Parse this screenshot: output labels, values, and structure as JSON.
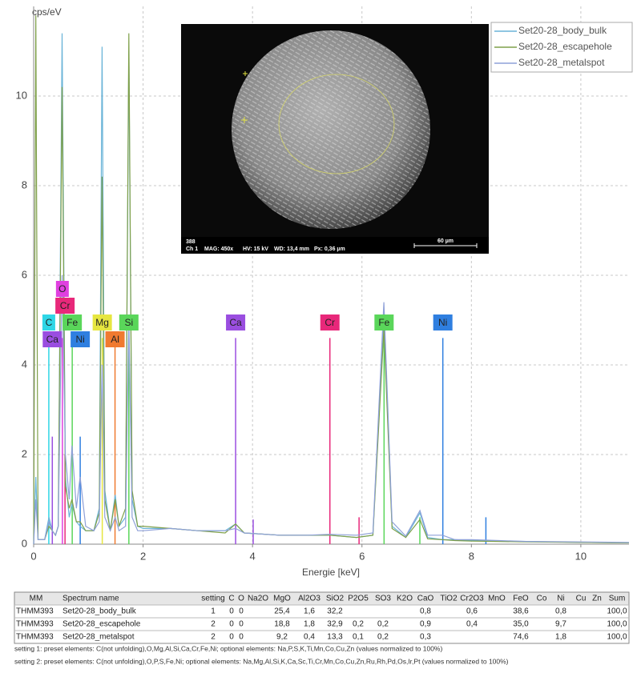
{
  "chart_data": {
    "type": "line",
    "y_label": "cps/eV",
    "x_label": "Energie [keV]",
    "xlim": [
      0,
      10.88
    ],
    "ylim": [
      0,
      12
    ],
    "xticks": [
      0,
      2,
      4,
      6,
      8,
      10
    ],
    "yticks": [
      0,
      2,
      4,
      6,
      8,
      10
    ],
    "grid": true,
    "legend": "top-right",
    "x": [
      0,
      0.04,
      0.08,
      0.2,
      0.28,
      0.34,
      0.4,
      0.45,
      0.52,
      0.58,
      0.65,
      0.7,
      0.78,
      0.85,
      0.95,
      1.1,
      1.2,
      1.25,
      1.3,
      1.4,
      1.49,
      1.56,
      1.68,
      1.74,
      1.8,
      1.9,
      2.0,
      2.5,
      3.0,
      3.5,
      3.69,
      3.85,
      4.5,
      5.0,
      5.41,
      5.9,
      6.2,
      6.4,
      6.55,
      6.8,
      7.06,
      7.2,
      7.47,
      7.7,
      8.0,
      8.5,
      9.0,
      10.0,
      10.88
    ],
    "series": [
      {
        "name": "Set20-28_body_bulk",
        "color": "#6ab4d8",
        "values": [
          0,
          1.5,
          0.1,
          0.1,
          0.6,
          0.3,
          0.2,
          0.4,
          11.4,
          1.5,
          0.6,
          0.9,
          0.5,
          0.4,
          0.3,
          0.3,
          0.8,
          11.1,
          1.2,
          0.3,
          1.1,
          0.4,
          0.6,
          11.0,
          1.0,
          0.4,
          0.35,
          0.35,
          0.3,
          0.3,
          0.45,
          0.25,
          0.2,
          0.2,
          0.2,
          0.15,
          0.2,
          5.2,
          0.4,
          0.15,
          0.7,
          0.15,
          0.1,
          0.1,
          0.08,
          0.07,
          0.06,
          0.04,
          0.03
        ]
      },
      {
        "name": "Set20-28_escapehole",
        "color": "#7fa04a",
        "values": [
          0,
          11.8,
          0.1,
          0.1,
          0.4,
          0.3,
          0.2,
          0.4,
          10.2,
          1.3,
          0.8,
          1.0,
          0.5,
          0.5,
          0.3,
          0.3,
          0.7,
          8.2,
          1.0,
          0.3,
          1.0,
          0.4,
          0.8,
          11.4,
          1.2,
          0.4,
          0.4,
          0.35,
          0.3,
          0.25,
          0.45,
          0.25,
          0.2,
          0.2,
          0.2,
          0.15,
          0.2,
          4.8,
          0.35,
          0.15,
          0.55,
          0.12,
          0.1,
          0.08,
          0.07,
          0.06,
          0.05,
          0.04,
          0.03
        ]
      },
      {
        "name": "Set20-28_metalspot",
        "color": "#8ea0d8",
        "values": [
          0,
          1.0,
          0.1,
          0.1,
          0.5,
          0.3,
          0.2,
          0.4,
          6.0,
          2.0,
          1.0,
          2.2,
          0.8,
          1.5,
          0.4,
          0.3,
          0.5,
          4.0,
          0.6,
          0.3,
          0.6,
          0.3,
          0.4,
          5.0,
          0.6,
          0.3,
          0.3,
          0.35,
          0.3,
          0.3,
          0.35,
          0.25,
          0.2,
          0.2,
          0.22,
          0.2,
          0.25,
          5.4,
          0.5,
          0.18,
          0.75,
          0.2,
          0.2,
          0.1,
          0.1,
          0.08,
          0.06,
          0.05,
          0.04
        ]
      }
    ],
    "element_lines": [
      {
        "x": 0.277,
        "height": 4.6,
        "color": "#2fd6e6"
      },
      {
        "x": 0.341,
        "height": 2.4,
        "color": "#9a4ee0"
      },
      {
        "x": 0.525,
        "height": 4.6,
        "color": "#e040e0"
      },
      {
        "x": 0.573,
        "height": 2.0,
        "color": "#e8287a"
      },
      {
        "x": 0.705,
        "height": 4.6,
        "color": "#5ad65a"
      },
      {
        "x": 0.851,
        "height": 2.4,
        "color": "#2f7fe0"
      },
      {
        "x": 1.254,
        "height": 4.6,
        "color": "#e6e640"
      },
      {
        "x": 1.487,
        "height": 4.6,
        "color": "#f07a30"
      },
      {
        "x": 1.74,
        "height": 4.6,
        "color": "#5ad65a"
      },
      {
        "x": 3.691,
        "height": 4.6,
        "color": "#9a4ee0"
      },
      {
        "x": 4.012,
        "height": 0.55,
        "color": "#9a4ee0"
      },
      {
        "x": 5.414,
        "height": 4.6,
        "color": "#e8287a"
      },
      {
        "x": 5.947,
        "height": 0.6,
        "color": "#e8287a"
      },
      {
        "x": 6.404,
        "height": 4.6,
        "color": "#5ad65a"
      },
      {
        "x": 7.058,
        "height": 0.6,
        "color": "#5ad65a"
      },
      {
        "x": 7.478,
        "height": 4.6,
        "color": "#2f7fe0"
      },
      {
        "x": 8.265,
        "height": 0.6,
        "color": "#2f7fe0"
      }
    ],
    "element_labels": [
      {
        "label": "C",
        "x": 0.277,
        "color": "#2fd6e6"
      },
      {
        "label": "Ca",
        "x": 0.341,
        "color": "#9a4ee0"
      },
      {
        "label": "Cr",
        "x": 0.573,
        "color": "#e8287a"
      },
      {
        "label": "O",
        "x": 0.525,
        "color": "#e040e0"
      },
      {
        "label": "Fe",
        "x": 0.705,
        "color": "#5ad65a"
      },
      {
        "label": "Ni",
        "x": 0.851,
        "color": "#2f7fe0"
      },
      {
        "label": "Mg",
        "x": 1.254,
        "color": "#e6e640"
      },
      {
        "label": "Al",
        "x": 1.487,
        "color": "#f07a30"
      },
      {
        "label": "Si",
        "x": 1.74,
        "color": "#5ad65a"
      },
      {
        "label": "Ca",
        "x": 3.691,
        "color": "#9a4ee0"
      },
      {
        "label": "Cr",
        "x": 5.414,
        "color": "#e8287a"
      },
      {
        "label": "Fe",
        "x": 6.404,
        "color": "#5ad65a"
      },
      {
        "label": "Ni",
        "x": 7.478,
        "color": "#2f7fe0"
      }
    ]
  },
  "inset_image": {
    "number": "388",
    "channel": "Ch 1",
    "mag": "MAG: 450x",
    "hv": "HV: 15 kV",
    "wd": "WD: 13,4 mm",
    "px": "Px: 0,36 µm",
    "scale_bar": "60 µm"
  },
  "table": {
    "header": [
      "MM",
      "Spectrum name",
      "setting",
      "C",
      "O",
      "Na2O",
      "MgO",
      "Al2O3",
      "SiO2",
      "P2O5",
      "SO3",
      "K2O",
      "CaO",
      "TiO2",
      "Cr2O3",
      "MnO",
      "FeO",
      "Co",
      "Ni",
      "Cu",
      "Zn",
      "Sum"
    ],
    "rows": [
      [
        "THMM393",
        "Set20-28_body_bulk",
        "1",
        "0",
        "0",
        null,
        "25,4",
        "1,6",
        "32,2",
        null,
        null,
        null,
        "0,8",
        null,
        "0,6",
        null,
        "38,6",
        null,
        "0,8",
        null,
        null,
        "100,0"
      ],
      [
        "THMM393",
        "Set20-28_escapehole",
        "2",
        "0",
        "0",
        null,
        "18,8",
        "1,8",
        "32,9",
        "0,2",
        "0,2",
        null,
        "0,9",
        null,
        "0,4",
        null,
        "35,0",
        null,
        "9,7",
        null,
        null,
        "100,0"
      ],
      [
        "THMM393",
        "Set20-28_metalspot",
        "2",
        "0",
        "0",
        null,
        "9,2",
        "0,4",
        "13,3",
        "0,1",
        "0,2",
        null,
        "0,3",
        null,
        null,
        null,
        "74,6",
        null,
        "1,8",
        null,
        null,
        "100,0"
      ]
    ]
  },
  "notes": [
    "setting 1: preset elements: C(not unfolding),O,Mg,Al,Si,Ca,Cr,Fe,Ni; optional elements: Na,P,S,K,Ti,Mn,Co,Cu,Zn (values normalized to 100%)",
    "setting 2: preset elements: C(not unfolding),O,P,S,Fe,Ni; optional elements: Na,Mg,Al,Si,K,Ca,Sc,Ti,Cr,Mn,Co,Cu,Zn,Ru,Rh,Pd,Os,Ir,Pt (values normalized to 100%)"
  ]
}
